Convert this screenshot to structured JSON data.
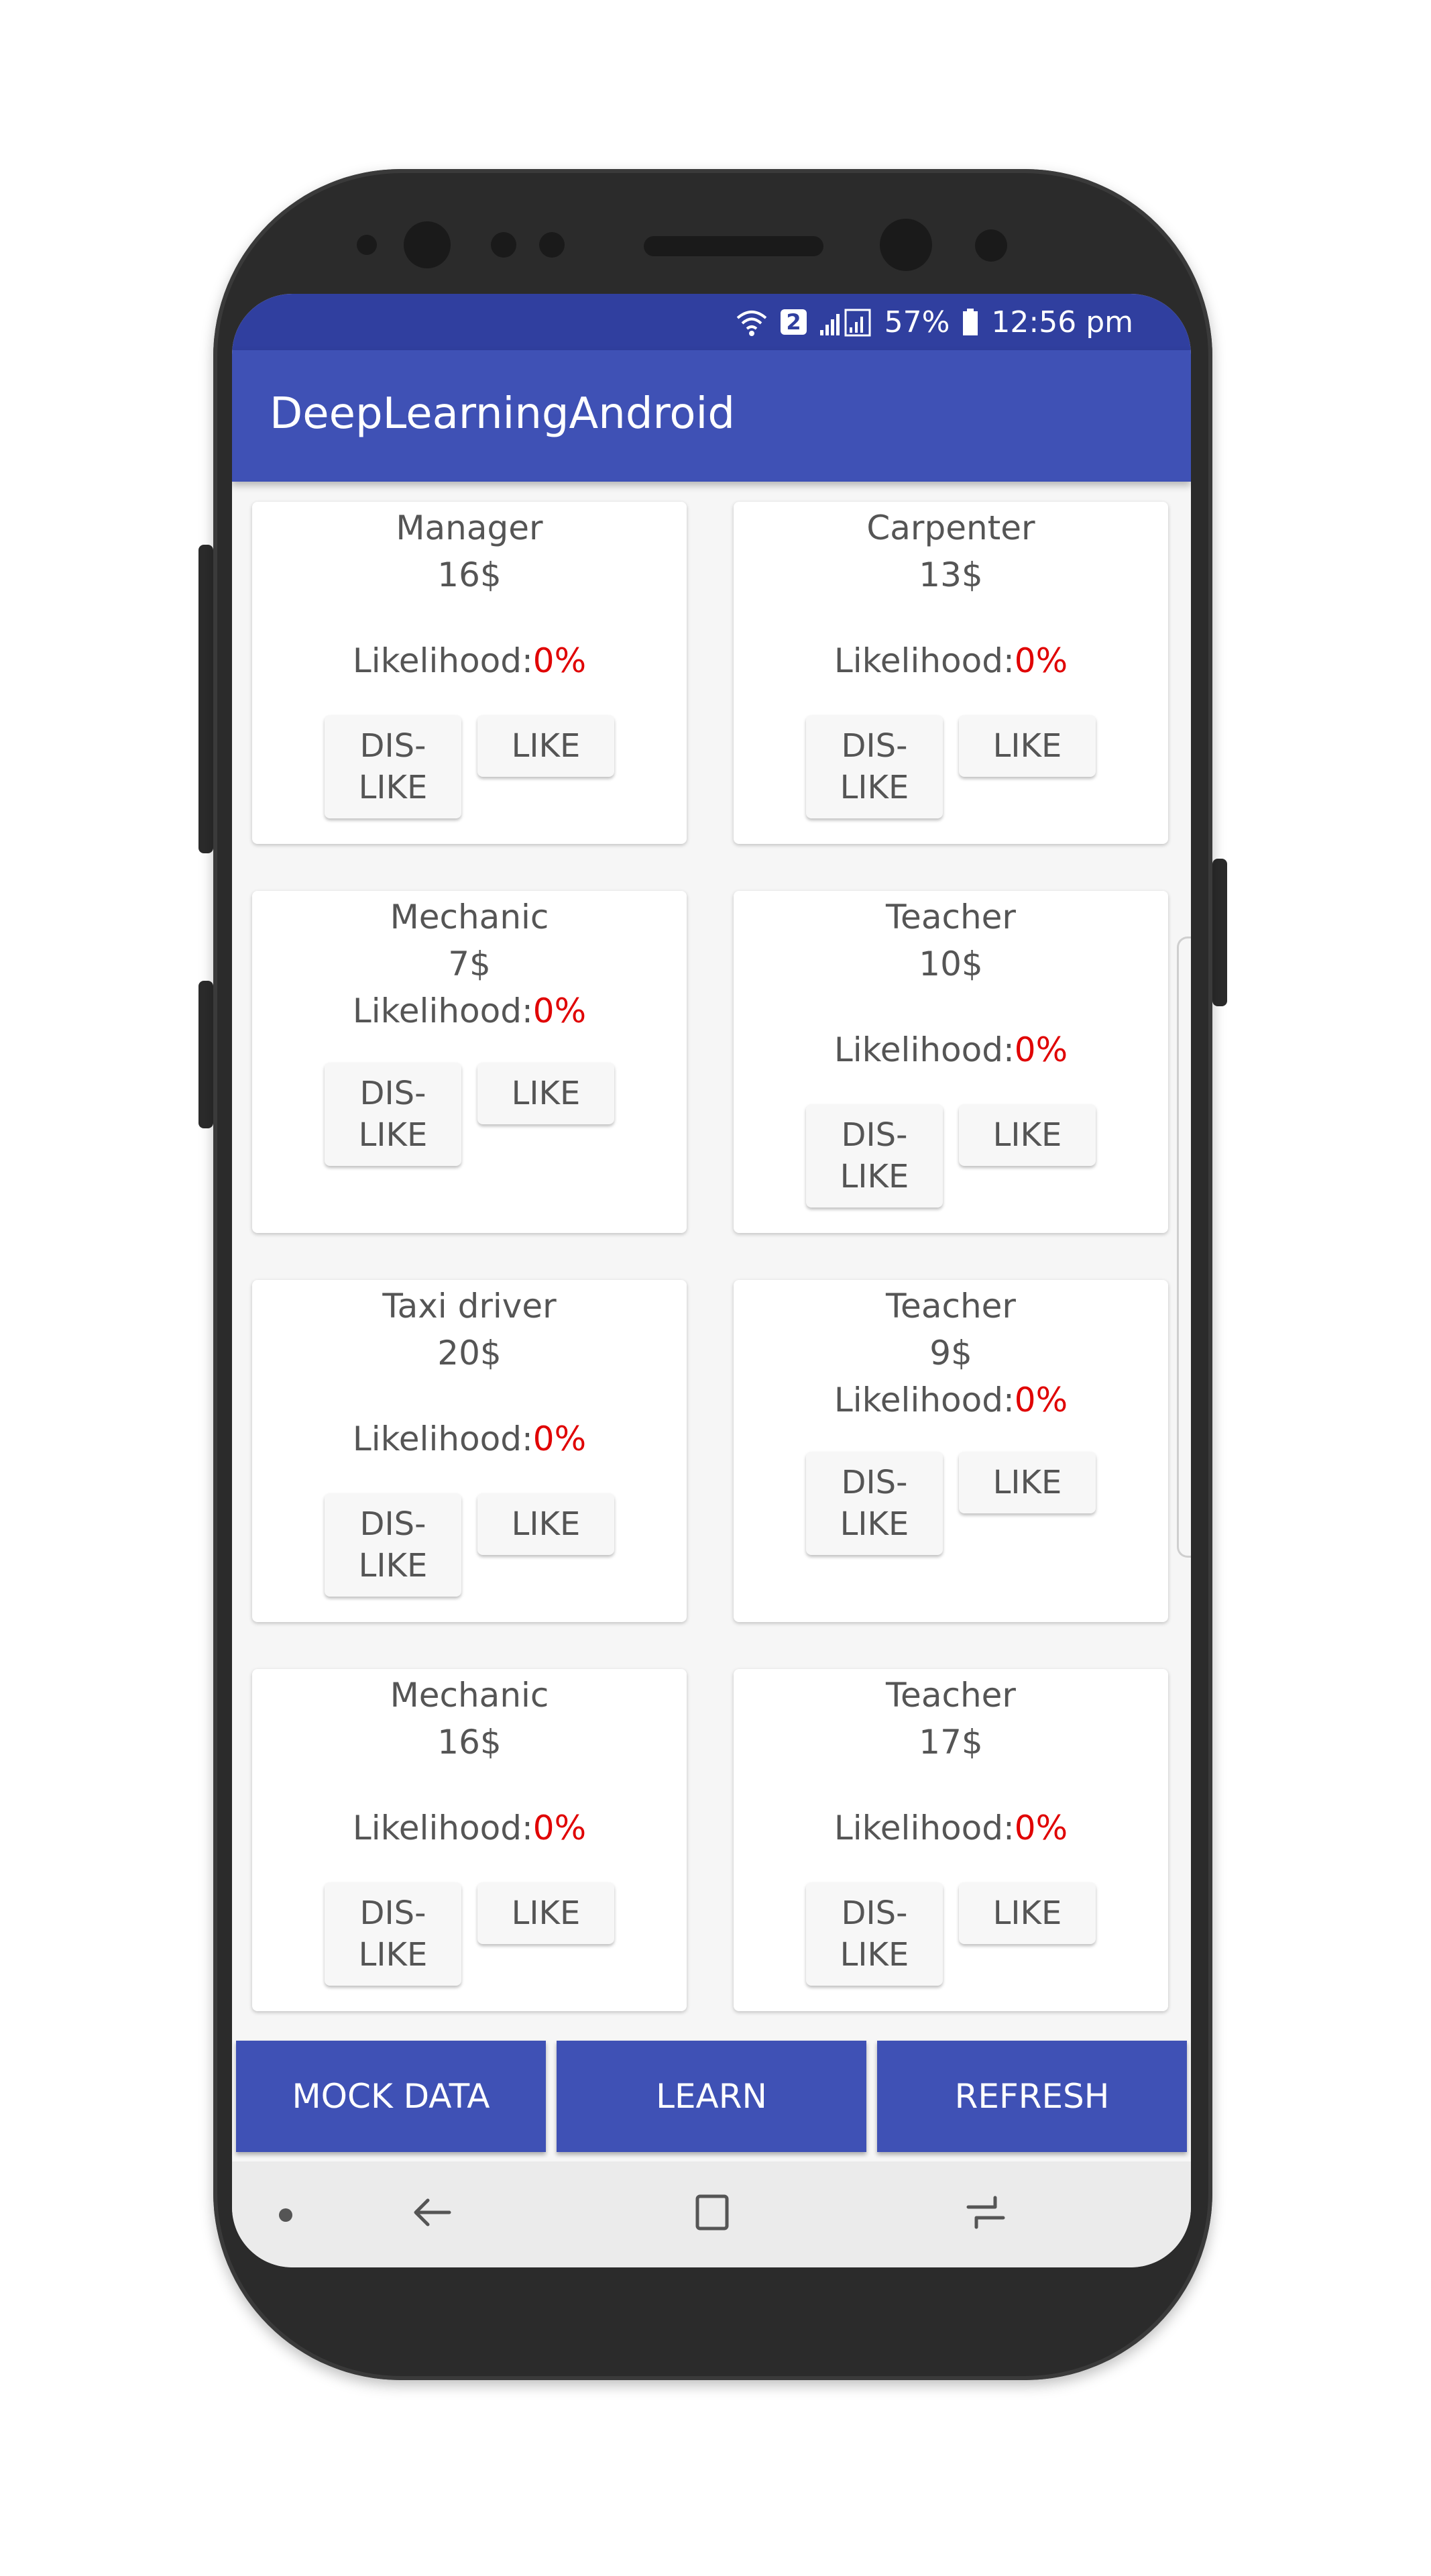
{
  "status_bar": {
    "sim_badge": "2",
    "battery": "57%",
    "time": "12:56 pm",
    "icons": [
      "wifi-icon",
      "signal-icon",
      "battery-icon"
    ]
  },
  "app_bar": {
    "title": "DeepLearningAndroid"
  },
  "colors": {
    "app_bar": "#3f51b5",
    "status_bar": "#303f9f",
    "likelihood_value": "#e00000"
  },
  "cards": [
    {
      "title": "Manager",
      "price": "16$",
      "likelihood_label": "Likelihood:",
      "likelihood_value": "0%",
      "dislike": "DIS-LIKE",
      "like": "LIKE"
    },
    {
      "title": "Carpenter",
      "price": "13$",
      "likelihood_label": "Likelihood:",
      "likelihood_value": "0%",
      "dislike": "DIS-LIKE",
      "like": "LIKE"
    },
    {
      "title": "Mechanic",
      "price": "7$",
      "likelihood_label": "Likelihood:",
      "likelihood_value": "0%",
      "dislike": "DIS-LIKE",
      "like": "LIKE"
    },
    {
      "title": "Teacher",
      "price": "10$",
      "likelihood_label": "Likelihood:",
      "likelihood_value": "0%",
      "dislike": "DIS-LIKE",
      "like": "LIKE"
    },
    {
      "title": "Taxi driver",
      "price": "20$",
      "likelihood_label": "Likelihood:",
      "likelihood_value": "0%",
      "dislike": "DIS-LIKE",
      "like": "LIKE"
    },
    {
      "title": "Teacher",
      "price": "9$",
      "likelihood_label": "Likelihood:",
      "likelihood_value": "0%",
      "dislike": "DIS-LIKE",
      "like": "LIKE"
    },
    {
      "title": "Mechanic",
      "price": "16$",
      "likelihood_label": "Likelihood:",
      "likelihood_value": "0%",
      "dislike": "DIS-LIKE",
      "like": "LIKE"
    },
    {
      "title": "Teacher",
      "price": "17$",
      "likelihood_label": "Likelihood:",
      "likelihood_value": "0%",
      "dislike": "DIS-LIKE",
      "like": "LIKE"
    }
  ],
  "actions": {
    "mock_data": "MOCK DATA",
    "learn": "LEARN",
    "refresh": "REFRESH"
  },
  "nav_bar": {
    "icons": [
      "nav-dot-icon",
      "back-icon",
      "home-icon",
      "recent-apps-icon"
    ]
  }
}
